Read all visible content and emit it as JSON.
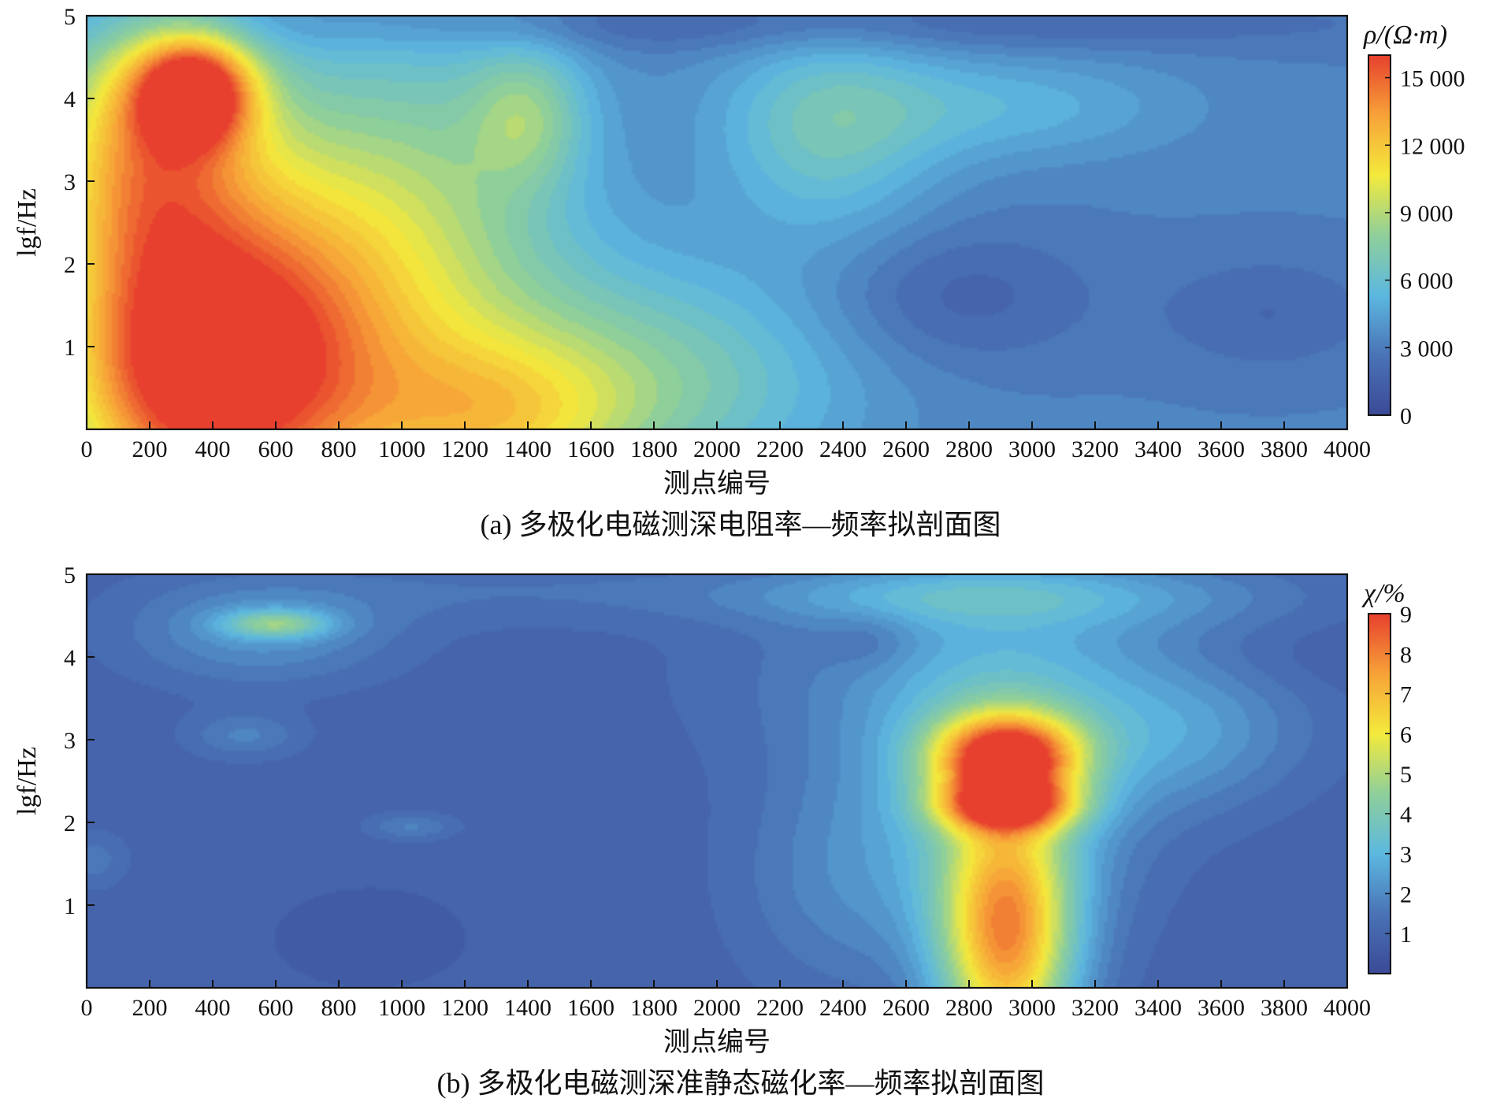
{
  "colorscale": [
    "#3b4a97",
    "#4a73b6",
    "#5cb8e0",
    "#8fcf9a",
    "#f4ea3c",
    "#f7a238",
    "#e7402e"
  ],
  "chart_data": [
    {
      "type": "heatmap",
      "id": "a",
      "caption": "(a) 多极化电磁测深电阻率—频率拟剖面图",
      "xlabel": "测点编号",
      "ylabel": "lgf/Hz",
      "xlim": [
        0,
        4000
      ],
      "ylim": [
        0,
        5
      ],
      "xticks": [
        "0",
        "200",
        "400",
        "600",
        "800",
        "1000",
        "1200",
        "1400",
        "1600",
        "1800",
        "2000",
        "2200",
        "2400",
        "2600",
        "2800",
        "3000",
        "3200",
        "3400",
        "3600",
        "3800",
        "4000"
      ],
      "yticks": [
        "1",
        "2",
        "3",
        "4",
        "5"
      ],
      "colorbar": {
        "title": "ρ/(Ω·m)",
        "range": [
          0,
          16000
        ],
        "ticks": [
          0,
          3000,
          6000,
          9000,
          12000,
          15000
        ],
        "tick_labels": [
          "0",
          "3 000",
          "6 000",
          "9 000",
          "12 000",
          "15 000"
        ]
      },
      "background": 3200,
      "features": [
        {
          "x": 450,
          "y": 0.8,
          "sx": 330,
          "sy": 1.5,
          "v": 11800
        },
        {
          "x": 200,
          "y": 0.3,
          "sx": 250,
          "sy": 0.9,
          "v": 2000
        },
        {
          "x": 150,
          "y": 2.5,
          "sx": 220,
          "sy": 1.6,
          "v": 4500
        },
        {
          "x": 340,
          "y": 4.1,
          "sx": 130,
          "sy": 0.45,
          "v": 10500
        },
        {
          "x": 220,
          "y": 3.6,
          "sx": 260,
          "sy": 1.0,
          "v": 4800
        },
        {
          "x": 950,
          "y": 1.3,
          "sx": 400,
          "sy": 2.0,
          "v": 3800
        },
        {
          "x": 1300,
          "y": 0.1,
          "sx": 300,
          "sy": 0.7,
          "v": 4500
        },
        {
          "x": 1800,
          "y": 0.6,
          "sx": 450,
          "sy": 1.0,
          "v": 3800
        },
        {
          "x": 1400,
          "y": 3.8,
          "sx": 130,
          "sy": 0.6,
          "v": 3300
        },
        {
          "x": 1050,
          "y": 3.0,
          "sx": 350,
          "sy": 1.6,
          "v": 2400
        },
        {
          "x": 2350,
          "y": 3.6,
          "sx": 250,
          "sy": 0.9,
          "v": 3200
        },
        {
          "x": 2900,
          "y": 3.9,
          "sx": 400,
          "sy": 0.45,
          "v": 2000
        },
        {
          "x": 2750,
          "y": 1.6,
          "sx": 300,
          "sy": 0.6,
          "v": -1600
        },
        {
          "x": 3750,
          "y": 1.4,
          "sx": 250,
          "sy": 0.5,
          "v": -1200
        },
        {
          "x": 2200,
          "y": 4.9,
          "sx": 1400,
          "sy": 0.25,
          "v": -1400
        }
      ]
    },
    {
      "type": "heatmap",
      "id": "b",
      "caption": "(b) 多极化电磁测深准静态磁化率—频率拟剖面图",
      "xlabel": "测点编号",
      "ylabel": "lgf/Hz",
      "xlim": [
        0,
        4000
      ],
      "ylim": [
        0,
        5
      ],
      "xticks": [
        "0",
        "200",
        "400",
        "600",
        "800",
        "1000",
        "1200",
        "1400",
        "1600",
        "1800",
        "2000",
        "2200",
        "2400",
        "2600",
        "2800",
        "3000",
        "3200",
        "3400",
        "3600",
        "3800",
        "4000"
      ],
      "yticks": [
        "1",
        "2",
        "3",
        "4",
        "5"
      ],
      "colorbar": {
        "title": "χ/%",
        "range": [
          0,
          9
        ],
        "ticks": [
          1,
          2,
          3,
          4,
          5,
          6,
          7,
          8,
          9
        ],
        "tick_labels": [
          "1",
          "2",
          "3",
          "4",
          "5",
          "6",
          "7",
          "8",
          "9"
        ]
      },
      "background": 0.9,
      "features": [
        {
          "x": 2920,
          "y": 2.8,
          "sx": 160,
          "sy": 0.35,
          "v": 6.8
        },
        {
          "x": 2920,
          "y": 2.2,
          "sx": 150,
          "sy": 0.22,
          "v": 5.2
        },
        {
          "x": 2920,
          "y": 0.6,
          "sx": 150,
          "sy": 1.1,
          "v": 6.3
        },
        {
          "x": 2900,
          "y": 2.4,
          "sx": 300,
          "sy": 1.3,
          "v": 2.0
        },
        {
          "x": 2950,
          "y": 3.8,
          "sx": 600,
          "sy": 0.9,
          "v": 1.2
        },
        {
          "x": 3500,
          "y": 3.0,
          "sx": 250,
          "sy": 0.6,
          "v": 1.0
        },
        {
          "x": 2400,
          "y": 1.3,
          "sx": 250,
          "sy": 1.0,
          "v": 0.9
        },
        {
          "x": 600,
          "y": 4.4,
          "sx": 120,
          "sy": 0.12,
          "v": 2.5
        },
        {
          "x": 550,
          "y": 4.3,
          "sx": 300,
          "sy": 0.45,
          "v": 1.3
        },
        {
          "x": 2650,
          "y": 4.75,
          "sx": 450,
          "sy": 0.25,
          "v": 1.1
        },
        {
          "x": 1350,
          "y": 4.8,
          "sx": 600,
          "sy": 0.3,
          "v": 0.5
        },
        {
          "x": 3200,
          "y": 4.75,
          "sx": 500,
          "sy": 0.3,
          "v": 0.8
        },
        {
          "x": 500,
          "y": 3.05,
          "sx": 130,
          "sy": 0.2,
          "v": 0.9
        },
        {
          "x": 1030,
          "y": 1.95,
          "sx": 100,
          "sy": 0.12,
          "v": 0.9
        },
        {
          "x": 20,
          "y": 1.55,
          "sx": 80,
          "sy": 0.25,
          "v": 0.7
        },
        {
          "x": 2480,
          "y": 4.2,
          "sx": 100,
          "sy": 0.25,
          "v": -0.5
        },
        {
          "x": 3850,
          "y": 4.0,
          "sx": 350,
          "sy": 0.35,
          "v": -0.3
        },
        {
          "x": 900,
          "y": 0.6,
          "sx": 250,
          "sy": 0.5,
          "v": -0.2
        }
      ]
    }
  ]
}
